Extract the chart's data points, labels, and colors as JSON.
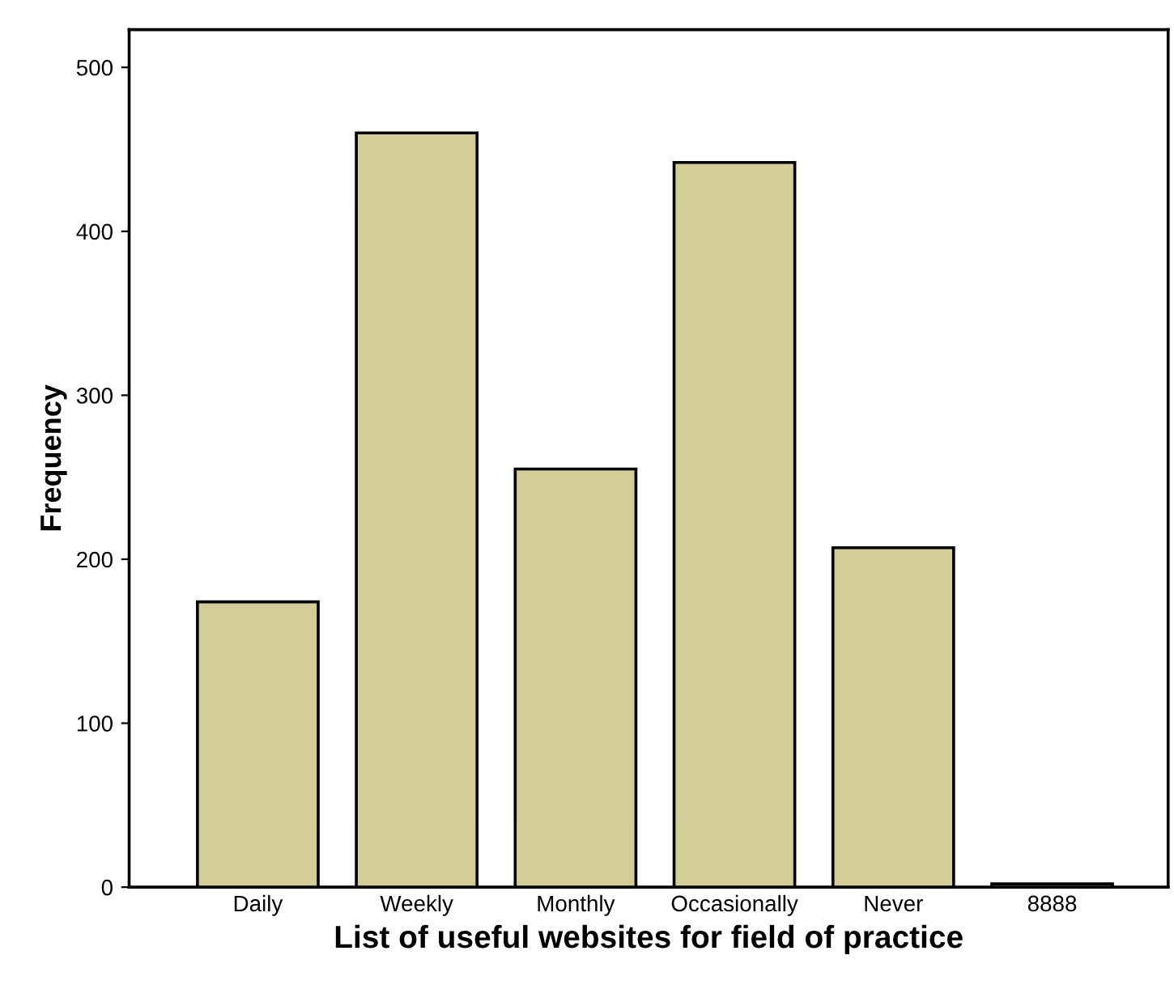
{
  "chart_data": {
    "type": "bar",
    "xlabel": "List of useful websites for field of practice",
    "ylabel": "Frequency",
    "categories": [
      "Daily",
      "Weekly",
      "Monthly",
      "Occasionally",
      "Never",
      "8888"
    ],
    "values": [
      174,
      460,
      255,
      442,
      207,
      2
    ],
    "color": "#d3ce97",
    "ylim": [
      0,
      523
    ],
    "yticks": [
      0,
      100,
      200,
      300,
      400,
      500
    ],
    "grid": false,
    "legend": false
  }
}
